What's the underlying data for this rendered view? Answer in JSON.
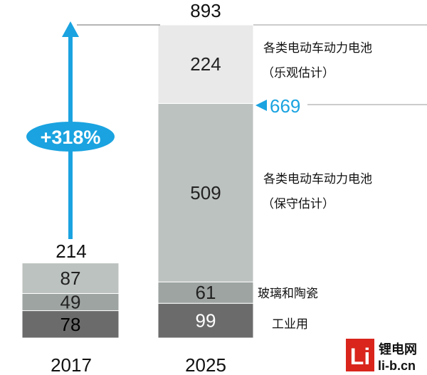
{
  "chart_data": {
    "type": "bar",
    "stacked": true,
    "categories": [
      "2017",
      "2025"
    ],
    "series": [
      {
        "name": "工业用",
        "values": [
          78,
          99
        ],
        "color": "#6b6b6b",
        "label_color": "#000000"
      },
      {
        "name": "玻璃和陶瓷",
        "values": [
          49,
          61
        ],
        "color": "#9ea4a1",
        "label_color": "#222222"
      },
      {
        "name": "各类电动车动力电池（保守估计）",
        "values": [
          87,
          509
        ],
        "color": "#bcc2bf",
        "label_color": "#222222"
      },
      {
        "name": "各类电动车动力电池（乐观估计）",
        "values": [
          null,
          224
        ],
        "color": "#e8e9e8",
        "label_color": "#222222"
      }
    ],
    "legend_labels": {
      "industrial": "工业用",
      "glass": "玻璃和陶瓷",
      "conservative_line1": "各类电动车动力电池",
      "conservative_line2": "（保守估计）",
      "optimistic_line1": "各类电动车动力电池",
      "optimistic_line2": "（乐观估计）"
    },
    "totals": [
      {
        "category": "2017",
        "value": "214"
      },
      {
        "category": "2025",
        "value": "893"
      }
    ],
    "marker": {
      "value": 669,
      "label": "669",
      "color": "#1aa3e0"
    },
    "growth_annotation": {
      "text": "+318%",
      "color": "#1aa3e0"
    },
    "ylim": [
      0,
      900
    ],
    "grid": false,
    "colors": {
      "accent": "#1aa3e0",
      "logo_red": "#d9251c"
    }
  },
  "watermark": {
    "logo_text": "Li",
    "line1": "锂电网",
    "line2": "li-b.cn"
  }
}
